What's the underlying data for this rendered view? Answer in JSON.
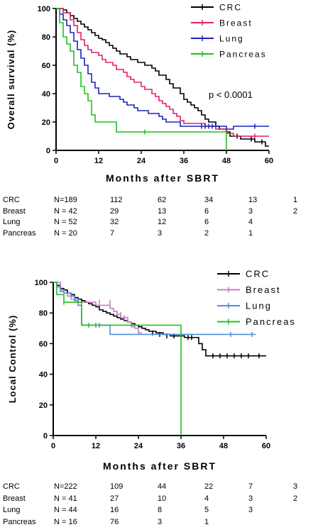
{
  "chart_data": [
    {
      "type": "line",
      "subtype": "kaplan-meier",
      "ylabel": "Overall survival (%)",
      "xlabel": "Months after SBRT",
      "xlim": [
        0,
        60
      ],
      "ylim": [
        0,
        100
      ],
      "xticks": [
        0,
        12,
        24,
        36,
        48,
        60
      ],
      "yticks": [
        0,
        20,
        40,
        60,
        80,
        100
      ],
      "annotation": "p < 0.0001",
      "legend_position": "top-right",
      "series": [
        {
          "name": "CRC",
          "color": "#000000",
          "points": [
            [
              0,
              100
            ],
            [
              2,
              99
            ],
            [
              3,
              97
            ],
            [
              4,
              95
            ],
            [
              5,
              93
            ],
            [
              6,
              91
            ],
            [
              7,
              89
            ],
            [
              8,
              87
            ],
            [
              9,
              85
            ],
            [
              10,
              83
            ],
            [
              11,
              81
            ],
            [
              12,
              79
            ],
            [
              13,
              78
            ],
            [
              14,
              76
            ],
            [
              15,
              74
            ],
            [
              16,
              72
            ],
            [
              17,
              70
            ],
            [
              18,
              68
            ],
            [
              20,
              66
            ],
            [
              21,
              64
            ],
            [
              23,
              62
            ],
            [
              25,
              60
            ],
            [
              27,
              58
            ],
            [
              28,
              56
            ],
            [
              29,
              53
            ],
            [
              31,
              50
            ],
            [
              32,
              47
            ],
            [
              33,
              44
            ],
            [
              35,
              40
            ],
            [
              36,
              36
            ],
            [
              37,
              34
            ],
            [
              38,
              32
            ],
            [
              39,
              30
            ],
            [
              40,
              28
            ],
            [
              41,
              25
            ],
            [
              42,
              22
            ],
            [
              43,
              20
            ],
            [
              45,
              17
            ],
            [
              46,
              15
            ],
            [
              48,
              13
            ],
            [
              49,
              10
            ],
            [
              51,
              10
            ],
            [
              52,
              8
            ],
            [
              55,
              8
            ],
            [
              56,
              6
            ],
            [
              58,
              6
            ],
            [
              59,
              3
            ],
            [
              60,
              3
            ]
          ],
          "censors": [
            [
              51,
              10
            ],
            [
              55,
              8
            ],
            [
              58,
              6
            ]
          ]
        },
        {
          "name": "Breast",
          "color": "#e0206e",
          "points": [
            [
              0,
              100
            ],
            [
              2,
              97
            ],
            [
              4,
              92
            ],
            [
              5,
              88
            ],
            [
              6,
              83
            ],
            [
              7,
              78
            ],
            [
              8,
              74
            ],
            [
              9,
              71
            ],
            [
              10,
              69
            ],
            [
              12,
              67
            ],
            [
              13,
              64
            ],
            [
              14,
              62
            ],
            [
              16,
              60
            ],
            [
              17,
              57
            ],
            [
              19,
              55
            ],
            [
              20,
              52
            ],
            [
              21,
              50
            ],
            [
              22,
              48
            ],
            [
              24,
              45
            ],
            [
              25,
              43
            ],
            [
              27,
              40
            ],
            [
              28,
              38
            ],
            [
              29,
              35
            ],
            [
              30,
              33
            ],
            [
              31,
              31
            ],
            [
              32,
              29
            ],
            [
              33,
              26
            ],
            [
              34,
              24
            ],
            [
              35,
              21
            ],
            [
              36,
              19
            ],
            [
              40,
              19
            ],
            [
              42,
              17
            ],
            [
              44,
              17
            ],
            [
              45,
              15
            ],
            [
              47,
              15
            ],
            [
              48,
              12
            ],
            [
              49,
              12
            ],
            [
              50,
              10
            ],
            [
              60,
              10
            ]
          ],
          "censors": [
            [
              56,
              10
            ]
          ]
        },
        {
          "name": "Lung",
          "color": "#1f25b8",
          "points": [
            [
              0,
              100
            ],
            [
              1,
              96
            ],
            [
              2,
              92
            ],
            [
              3,
              88
            ],
            [
              4,
              83
            ],
            [
              5,
              77
            ],
            [
              6,
              71
            ],
            [
              7,
              65
            ],
            [
              8,
              60
            ],
            [
              9,
              54
            ],
            [
              10,
              48
            ],
            [
              11,
              44
            ],
            [
              12,
              40
            ],
            [
              14,
              40
            ],
            [
              15,
              38
            ],
            [
              17,
              38
            ],
            [
              18,
              36
            ],
            [
              19,
              34
            ],
            [
              20,
              32
            ],
            [
              22,
              30
            ],
            [
              23,
              28
            ],
            [
              25,
              28
            ],
            [
              26,
              26
            ],
            [
              28,
              26
            ],
            [
              29,
              24
            ],
            [
              30,
              22
            ],
            [
              31,
              20
            ],
            [
              34,
              20
            ],
            [
              35,
              17
            ],
            [
              47,
              17
            ],
            [
              48,
              15
            ],
            [
              49,
              15
            ],
            [
              50,
              17
            ],
            [
              60,
              17
            ]
          ],
          "censors": [
            [
              41,
              17
            ],
            [
              42,
              17
            ],
            [
              43,
              17
            ],
            [
              44,
              17
            ],
            [
              56,
              17
            ]
          ]
        },
        {
          "name": "Pancreas",
          "color": "#22c020",
          "points": [
            [
              0,
              100
            ],
            [
              1,
              90
            ],
            [
              2,
              80
            ],
            [
              3,
              75
            ],
            [
              4,
              70
            ],
            [
              5,
              60
            ],
            [
              6,
              55
            ],
            [
              7,
              45
            ],
            [
              8,
              40
            ],
            [
              9,
              35
            ],
            [
              10,
              25
            ],
            [
              11,
              20
            ],
            [
              12,
              20
            ],
            [
              16,
              20
            ],
            [
              17,
              13
            ],
            [
              47,
              13
            ],
            [
              48,
              0
            ]
          ],
          "censors": [
            [
              25,
              13
            ]
          ]
        }
      ],
      "risk_table": {
        "rows": [
          {
            "group": "CRC",
            "n": "N=189",
            "values": [
              "112",
              "62",
              "34",
              "13",
              "1"
            ]
          },
          {
            "group": "Breast",
            "n": "N = 42",
            "values": [
              "29",
              "13",
              "6",
              "3",
              "2"
            ]
          },
          {
            "group": "Lung",
            "n": "N = 52",
            "values": [
              "32",
              "12",
              "6",
              "4",
              ""
            ]
          },
          {
            "group": "Pancreas",
            "n": "N = 20",
            "values": [
              "7",
              "3",
              "2",
              "1",
              ""
            ]
          }
        ]
      }
    },
    {
      "type": "line",
      "subtype": "kaplan-meier",
      "ylabel": "Local Control (%)",
      "xlabel": "Months after SBRT",
      "xlim": [
        0,
        60
      ],
      "ylim": [
        0,
        100
      ],
      "xticks": [
        0,
        12,
        24,
        36,
        48,
        60
      ],
      "yticks": [
        0,
        20,
        40,
        60,
        80,
        100
      ],
      "legend_position": "top-right",
      "series": [
        {
          "name": "CRC",
          "color": "#000000",
          "points": [
            [
              0,
              100
            ],
            [
              1,
              98
            ],
            [
              2,
              96
            ],
            [
              3,
              95
            ],
            [
              4,
              93
            ],
            [
              5,
              92
            ],
            [
              6,
              90
            ],
            [
              7,
              89
            ],
            [
              8,
              88
            ],
            [
              9,
              87
            ],
            [
              10,
              86
            ],
            [
              11,
              85
            ],
            [
              12,
              84
            ],
            [
              13,
              82
            ],
            [
              14,
              81
            ],
            [
              15,
              80
            ],
            [
              16,
              79
            ],
            [
              17,
              78
            ],
            [
              18,
              77
            ],
            [
              19,
              76
            ],
            [
              20,
              75
            ],
            [
              21,
              74
            ],
            [
              22,
              73
            ],
            [
              23,
              72
            ],
            [
              24,
              71
            ],
            [
              25,
              70
            ],
            [
              26,
              69
            ],
            [
              27,
              68
            ],
            [
              29,
              67
            ],
            [
              31,
              66
            ],
            [
              33,
              65
            ],
            [
              36,
              65
            ],
            [
              37,
              64
            ],
            [
              40,
              64
            ],
            [
              41,
              60
            ],
            [
              42,
              56
            ],
            [
              43,
              52
            ],
            [
              60,
              52
            ]
          ],
          "censors": [
            [
              28,
              67
            ],
            [
              30,
              66
            ],
            [
              32,
              65
            ],
            [
              34,
              65
            ],
            [
              38,
              64
            ],
            [
              39,
              64
            ],
            [
              45,
              52
            ],
            [
              47,
              52
            ],
            [
              49,
              52
            ],
            [
              51,
              52
            ],
            [
              53,
              52
            ],
            [
              55,
              52
            ],
            [
              58,
              52
            ]
          ]
        },
        {
          "name": "Breast",
          "color": "#c67fc4",
          "points": [
            [
              0,
              100
            ],
            [
              2,
              95
            ],
            [
              3,
              93
            ],
            [
              4,
              91
            ],
            [
              5,
              89
            ],
            [
              7,
              87
            ],
            [
              11,
              87
            ],
            [
              12,
              85
            ],
            [
              15,
              85
            ],
            [
              16,
              83
            ],
            [
              17,
              81
            ],
            [
              18,
              79
            ],
            [
              19,
              77
            ],
            [
              21,
              74
            ],
            [
              22,
              71
            ],
            [
              23,
              70
            ],
            [
              24,
              67
            ],
            [
              25,
              67
            ]
          ],
          "censors": [
            [
              13,
              87
            ],
            [
              16,
              87
            ],
            [
              19,
              79
            ],
            [
              20,
              77
            ]
          ]
        },
        {
          "name": "Lung",
          "color": "#4f8fd8",
          "points": [
            [
              0,
              100
            ],
            [
              1,
              97
            ],
            [
              2,
              94
            ],
            [
              3,
              93
            ],
            [
              5,
              91
            ],
            [
              6,
              88
            ],
            [
              7,
              85
            ],
            [
              8,
              72
            ],
            [
              15,
              72
            ],
            [
              16,
              66
            ],
            [
              57,
              66
            ]
          ],
          "censors": [
            [
              12,
              72
            ],
            [
              13,
              72
            ],
            [
              50,
              66
            ],
            [
              56,
              66
            ]
          ]
        },
        {
          "name": "Pancreas",
          "color": "#22c020",
          "points": [
            [
              0,
              100
            ],
            [
              1,
              92
            ],
            [
              2,
              92
            ],
            [
              3,
              87
            ],
            [
              7,
              87
            ],
            [
              8,
              72
            ],
            [
              36,
              72
            ],
            [
              36,
              0
            ]
          ],
          "censors": [
            [
              3,
              87
            ],
            [
              10,
              72
            ]
          ]
        }
      ],
      "risk_table": {
        "rows": [
          {
            "group": "CRC",
            "n": "N=222",
            "values": [
              "109",
              "44",
              "22",
              "7",
              "3"
            ]
          },
          {
            "group": "Breast",
            "n": "N = 41",
            "values": [
              "27",
              "10",
              "4",
              "3",
              "2"
            ]
          },
          {
            "group": "Lung",
            "n": "N = 44",
            "values": [
              "16",
              "8",
              "5",
              "3",
              ""
            ]
          },
          {
            "group": "Pancreas",
            "n": "N = 16",
            "values": [
              "76",
              "3",
              "1",
              "",
              ""
            ]
          }
        ]
      }
    }
  ]
}
